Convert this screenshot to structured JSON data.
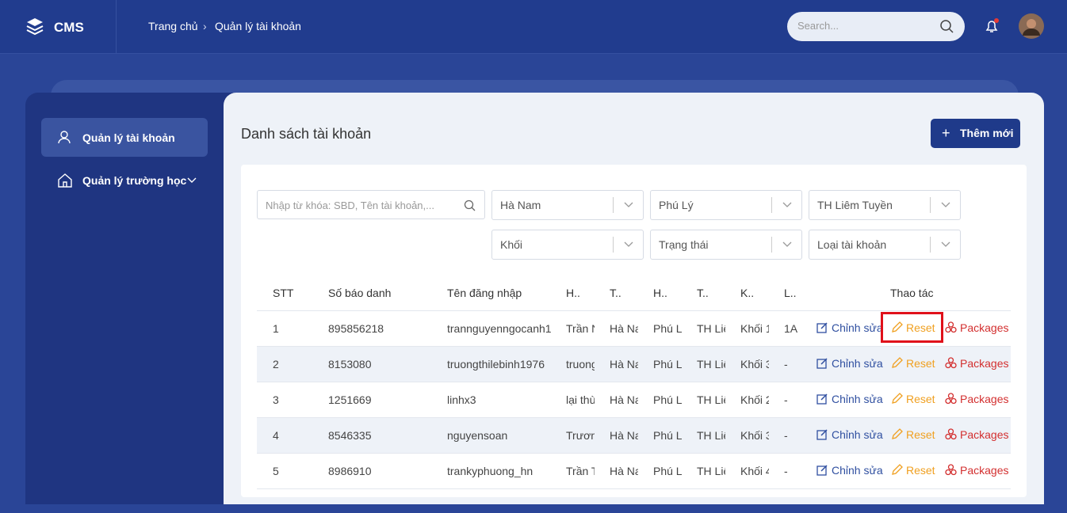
{
  "header": {
    "logo": "CMS",
    "breadcrumb": [
      "Trang chủ",
      "Quản lý tài khoản"
    ],
    "search_placeholder": "Search..."
  },
  "sidebar": {
    "items": [
      "Quản lý tài khoản",
      "Quản lý trường học"
    ]
  },
  "content": {
    "title": "Danh sách tài khoản",
    "add_button": "Thêm mới",
    "keyword_placeholder": "Nhập từ khóa: SBD, Tên tài khoản,...",
    "filters": [
      "Hà Nam",
      "Phú Lý",
      "TH Liêm Tuyền",
      "Khối",
      "Trạng thái",
      "Loại tài khoản"
    ]
  },
  "table": {
    "columns": [
      "STT",
      "Số báo danh",
      "Tên đăng nhập",
      "H..",
      "T..",
      "H..",
      "T..",
      "K..",
      "L..",
      "Thao tác"
    ],
    "rows": [
      [
        "1",
        "895856218",
        "trannguyenngocanh1",
        "Trần N",
        "Hà Na",
        "Phú L",
        "TH Liê",
        "Khối 1",
        "1A"
      ],
      [
        "2",
        "8153080",
        "truongthilebinh1976",
        "truong",
        "Hà Na",
        "Phú L",
        "TH Liê",
        "Khối 3",
        "-"
      ],
      [
        "3",
        "1251669",
        "linhx3",
        "lại thù",
        "Hà Na",
        "Phú L",
        "TH Liê",
        "Khối 2",
        "-"
      ],
      [
        "4",
        "8546335",
        "nguyensoan",
        "Trươn",
        "Hà Na",
        "Phú L",
        "TH Liê",
        "Khối 3",
        "-"
      ],
      [
        "5",
        "8986910",
        "trankyphuong_hn",
        "Trần T",
        "Hà Na",
        "Phú L",
        "TH Liê",
        "Khối 4",
        "-"
      ]
    ],
    "actions": [
      "Chỉnh sửa",
      "Reset",
      "Packages"
    ]
  }
}
